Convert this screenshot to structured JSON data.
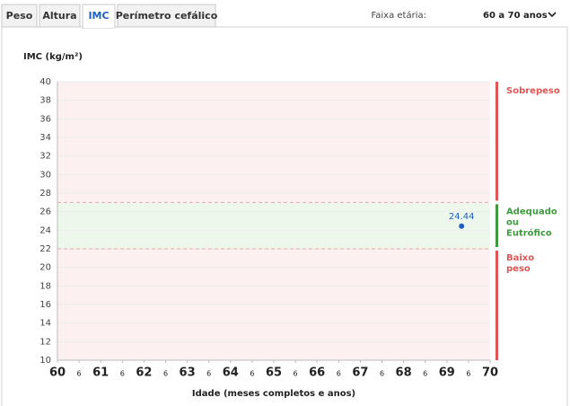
{
  "tabs": [
    "Peso",
    "Altura",
    "IMC",
    "Perímetro cefálico"
  ],
  "active_tab": 2,
  "age_filter": {
    "label": "Faixa etária:",
    "value": "60 a 70 anos"
  },
  "chart_data": {
    "type": "scatter",
    "y_label": "IMC (kg/m²)",
    "x_label": "Idade (meses completos e anos)",
    "xlim": [
      60,
      70
    ],
    "ylim": [
      10,
      40
    ],
    "yticks": [
      10,
      12,
      14,
      16,
      18,
      20,
      22,
      24,
      26,
      28,
      30,
      32,
      34,
      36,
      38,
      40
    ],
    "xticks": [
      60,
      {
        "value": 60.5,
        "label": "6"
      },
      61,
      {
        "value": 61.5,
        "label": "6"
      },
      62,
      {
        "value": 62.5,
        "label": "6"
      },
      63,
      {
        "value": 63.5,
        "label": "6"
      },
      64,
      {
        "value": 64.5,
        "label": "6"
      },
      65,
      {
        "value": 65.5,
        "label": "6"
      },
      66,
      {
        "value": 66.5,
        "label": "6"
      },
      67,
      {
        "value": 67.5,
        "label": "6"
      },
      68,
      {
        "value": 68.5,
        "label": "6"
      },
      69,
      {
        "value": 69.5,
        "label": "6"
      },
      70
    ],
    "grid": true,
    "bands": [
      {
        "name": "Sobrepeso",
        "from": 27,
        "to": 40,
        "color": "#e05555",
        "fill": "#fdf0f1"
      },
      {
        "name": "Adequado ou Eutrófico",
        "from": 22,
        "to": 27,
        "color": "#3f9a3f",
        "fill": "#eef7ec"
      },
      {
        "name": "Baixo peso",
        "from": 10,
        "to": 22,
        "color": "#e05555",
        "fill": "#fdf0f1"
      }
    ],
    "series": [
      {
        "color": "#1f5fbf",
        "x": [
          69.34
        ],
        "values": [
          24.44
        ]
      }
    ]
  }
}
